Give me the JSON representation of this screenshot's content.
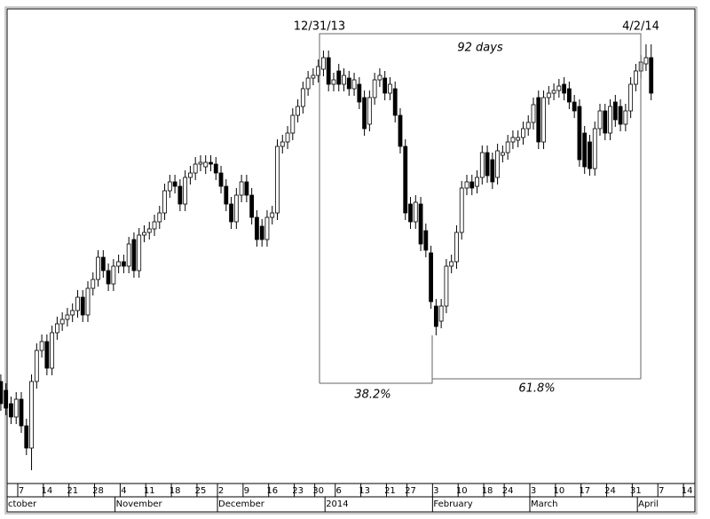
{
  "chart_data": {
    "type": "candlestick",
    "annotations": {
      "start_label": "12/31/13",
      "end_label": "4/2/14",
      "span_label": "92 days",
      "left_label": "38.2%",
      "right_label": "61.8%"
    },
    "xticks": [
      {
        "value": 4,
        "label": "7"
      },
      {
        "value": 9,
        "label": "14"
      },
      {
        "value": 14,
        "label": "21"
      },
      {
        "value": 19,
        "label": "28"
      },
      {
        "value": 24,
        "label": "4"
      },
      {
        "value": 29,
        "label": "11"
      },
      {
        "value": 34,
        "label": "18"
      },
      {
        "value": 39,
        "label": "25"
      },
      {
        "value": 43,
        "label": "2"
      },
      {
        "value": 48,
        "label": "9"
      },
      {
        "value": 53,
        "label": "16"
      },
      {
        "value": 58,
        "label": "23"
      },
      {
        "value": 62,
        "label": "30"
      },
      {
        "value": 66,
        "label": "6"
      },
      {
        "value": 71,
        "label": "13"
      },
      {
        "value": 76,
        "label": "21"
      },
      {
        "value": 80,
        "label": "27"
      },
      {
        "value": 85,
        "label": "3"
      },
      {
        "value": 90,
        "label": "10"
      },
      {
        "value": 95,
        "label": "18"
      },
      {
        "value": 99,
        "label": "24"
      },
      {
        "value": 104,
        "label": "3"
      },
      {
        "value": 109,
        "label": "10"
      },
      {
        "value": 114,
        "label": "17"
      },
      {
        "value": 119,
        "label": "24"
      },
      {
        "value": 124,
        "label": "31"
      },
      {
        "value": 129,
        "label": "7"
      },
      {
        "value": 134,
        "label": "14"
      }
    ],
    "months": [
      {
        "value": 0,
        "label": "ctober"
      },
      {
        "value": 23,
        "label": "November"
      },
      {
        "value": 43,
        "label": "December"
      },
      {
        "value": 64,
        "label": "2014"
      },
      {
        "value": 85,
        "label": "February"
      },
      {
        "value": 104,
        "label": "March"
      },
      {
        "value": 125,
        "label": "April"
      }
    ],
    "open": [
      15140,
      15100,
      15040,
      14980,
      15060,
      14940,
      14840,
      15140,
      15280,
      15320,
      15200,
      15360,
      15400,
      15420,
      15440,
      15460,
      15520,
      15440,
      15560,
      15600,
      15700,
      15640,
      15580,
      15660,
      15680,
      15660,
      15780,
      15640,
      15800,
      15812,
      15828,
      15860,
      15900,
      16000,
      16040,
      16020,
      15940,
      16060,
      16080,
      16120,
      16108,
      16128,
      16120,
      16080,
      16020,
      15940,
      15860,
      15980,
      16040,
      15980,
      15880,
      15840,
      15780,
      15880,
      15900,
      16200,
      16220,
      16260,
      16340,
      16380,
      16460,
      16508,
      16520,
      16548,
      16600,
      16480,
      16540,
      16480,
      16508,
      16460,
      16480,
      16420,
      16300,
      16420,
      16500,
      16508,
      16440,
      16460,
      16340,
      16200,
      15940,
      15860,
      15940,
      15820,
      15720,
      15480,
      15412,
      15480,
      15660,
      15680,
      15812,
      16012,
      16040,
      16020,
      16060,
      16172,
      16140,
      16060,
      16160,
      16172,
      16220,
      16228,
      16240,
      16280,
      16308,
      16420,
      16220,
      16420,
      16440,
      16452,
      16480,
      16460,
      16400,
      16380,
      16260,
      16220,
      16100,
      16280,
      16360,
      16260,
      16400,
      16380,
      16300,
      16360,
      16480,
      16540,
      16572,
      16600
    ],
    "high": [
      15172,
      15132,
      15072,
      15092,
      15092,
      14972,
      15172,
      15312,
      15352,
      15352,
      15392,
      15432,
      15452,
      15472,
      15492,
      15552,
      15552,
      15592,
      15632,
      15732,
      15732,
      15672,
      15692,
      15712,
      15712,
      15792,
      15812,
      15832,
      15844,
      15860,
      15892,
      15932,
      16032,
      16072,
      16072,
      16052,
      16092,
      16112,
      16152,
      16160,
      16160,
      16160,
      16152,
      16112,
      16052,
      15972,
      16012,
      16072,
      16072,
      16012,
      15912,
      15872,
      15912,
      15932,
      16232,
      16252,
      16292,
      16372,
      16412,
      16492,
      16540,
      16552,
      16592,
      16632,
      16632,
      16532,
      16572,
      16552,
      16540,
      16532,
      16512,
      16452,
      16452,
      16532,
      16552,
      16540,
      16512,
      16492,
      16372,
      16232,
      15972,
      15980,
      15972,
      15852,
      15752,
      15512,
      15512,
      15692,
      15712,
      15844,
      16044,
      16072,
      16072,
      16092,
      16204,
      16204,
      16172,
      16212,
      16204,
      16252,
      16272,
      16272,
      16312,
      16340,
      16420,
      16452,
      16452,
      16472,
      16484,
      16504,
      16512,
      16492,
      16432,
      16412,
      16292,
      16252,
      16312,
      16392,
      16392,
      16412,
      16432,
      16412,
      16392,
      16512,
      16572,
      16612,
      16660,
      16660
    ],
    "low": [
      15008,
      14988,
      14948,
      14948,
      14908,
      14808,
      14740,
      15108,
      15248,
      15168,
      15168,
      15328,
      15368,
      15388,
      15408,
      15428,
      15408,
      15408,
      15528,
      15568,
      15608,
      15548,
      15548,
      15628,
      15628,
      15628,
      15608,
      15608,
      15768,
      15780,
      15796,
      15828,
      15868,
      15968,
      15988,
      15908,
      15908,
      16028,
      16048,
      16088,
      16076,
      16088,
      16048,
      15988,
      15908,
      15828,
      15828,
      15948,
      15948,
      15848,
      15748,
      15748,
      15748,
      15848,
      15868,
      16168,
      16188,
      16228,
      16308,
      16348,
      16428,
      16476,
      16488,
      16516,
      16448,
      16448,
      16448,
      16448,
      16428,
      16428,
      16368,
      16248,
      16268,
      16388,
      16468,
      16408,
      16408,
      16308,
      16168,
      15868,
      15828,
      15828,
      15728,
      15700,
      15468,
      15348,
      15380,
      15448,
      15628,
      15648,
      15780,
      15980,
      15980,
      15988,
      16028,
      16036,
      16008,
      16028,
      16128,
      16140,
      16188,
      16196,
      16208,
      16248,
      16276,
      16188,
      16188,
      16388,
      16408,
      16420,
      16408,
      16368,
      16328,
      16108,
      16076,
      16068,
      16068,
      16248,
      16228,
      16228,
      16288,
      16268,
      16268,
      16328,
      16448,
      16508,
      16540,
      16408
    ],
    "close": [
      15040,
      15020,
      14980,
      15060,
      14940,
      14840,
      15140,
      15280,
      15320,
      15200,
      15360,
      15400,
      15420,
      15440,
      15460,
      15520,
      15440,
      15560,
      15600,
      15700,
      15640,
      15580,
      15660,
      15680,
      15660,
      15760,
      15640,
      15800,
      15812,
      15828,
      15860,
      15900,
      16000,
      16040,
      16020,
      15940,
      16060,
      16080,
      16120,
      16128,
      16128,
      16120,
      16080,
      16020,
      15940,
      15860,
      15980,
      16040,
      15980,
      15880,
      15780,
      15780,
      15880,
      15900,
      16200,
      16220,
      16260,
      16340,
      16380,
      16460,
      16508,
      16520,
      16560,
      16600,
      16480,
      16500,
      16480,
      16520,
      16460,
      16500,
      16400,
      16280,
      16420,
      16500,
      16520,
      16440,
      16480,
      16340,
      16200,
      15900,
      15860,
      15948,
      15760,
      15732,
      15500,
      15388,
      15480,
      15660,
      15680,
      15812,
      16012,
      16040,
      16012,
      16060,
      16172,
      16068,
      16040,
      16180,
      16172,
      16220,
      16240,
      16240,
      16280,
      16308,
      16388,
      16220,
      16420,
      16440,
      16452,
      16472,
      16440,
      16400,
      16360,
      16140,
      16108,
      16100,
      16280,
      16360,
      16260,
      16380,
      16320,
      16300,
      16360,
      16480,
      16540,
      16580,
      16600,
      16440
    ]
  }
}
